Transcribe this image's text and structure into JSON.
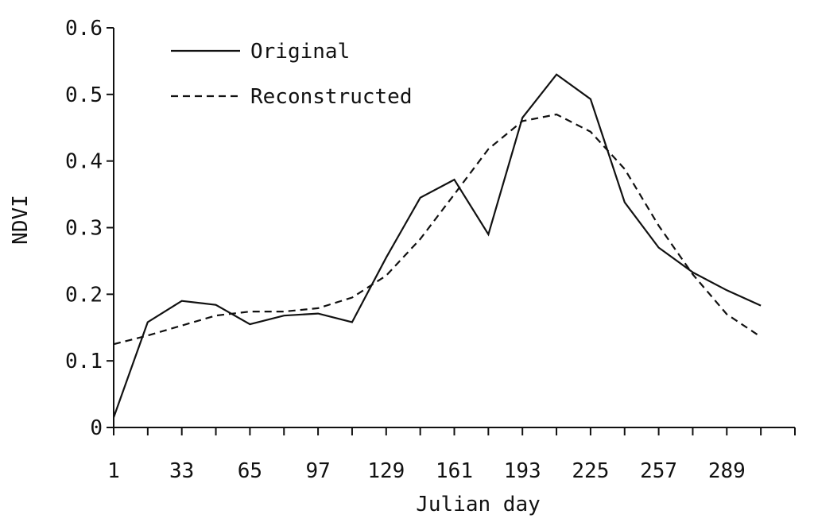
{
  "chart_data": {
    "type": "line",
    "title": "",
    "xlabel": "Julian day",
    "ylabel": "NDVI",
    "xlim": [
      1,
      321
    ],
    "ylim": [
      0,
      0.6
    ],
    "x_ticks": [
      1,
      33,
      65,
      97,
      129,
      161,
      193,
      225,
      257,
      289
    ],
    "x_minor_ticks": [
      17,
      49,
      81,
      113,
      145,
      177,
      209,
      241,
      273,
      305,
      321
    ],
    "y_ticks": [
      0,
      0.1,
      0.2,
      0.3,
      0.4,
      0.5,
      0.6
    ],
    "y_tick_labels": [
      "0",
      "0.1",
      "0.2",
      "0.3",
      "0.4",
      "0.5",
      "0.6"
    ],
    "grid": false,
    "legend_position": "top-left",
    "series": [
      {
        "name": "Original",
        "style": "solid",
        "x": [
          1,
          17,
          33,
          49,
          65,
          81,
          97,
          113,
          129,
          145,
          161,
          177,
          193,
          209,
          225,
          241,
          257,
          273,
          289,
          305
        ],
        "y": [
          0.015,
          0.158,
          0.19,
          0.184,
          0.155,
          0.168,
          0.171,
          0.158,
          0.255,
          0.345,
          0.372,
          0.29,
          0.465,
          0.53,
          0.493,
          0.338,
          0.27,
          0.233,
          0.206,
          0.183
        ]
      },
      {
        "name": "Reconstructed",
        "style": "dashed",
        "x": [
          1,
          17,
          33,
          49,
          65,
          81,
          97,
          113,
          129,
          145,
          161,
          177,
          193,
          209,
          225,
          241,
          257,
          273,
          289,
          305
        ],
        "y": [
          0.125,
          0.138,
          0.153,
          0.168,
          0.174,
          0.174,
          0.179,
          0.195,
          0.228,
          0.283,
          0.35,
          0.418,
          0.46,
          0.47,
          0.444,
          0.388,
          0.303,
          0.23,
          0.17,
          0.136
        ]
      }
    ]
  }
}
